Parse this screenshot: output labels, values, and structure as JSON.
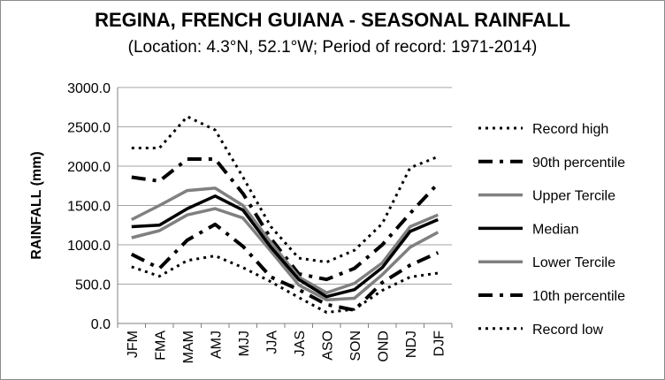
{
  "chart_data": {
    "type": "line",
    "title": "REGINA, FRENCH GUIANA - SEASONAL RAINFALL",
    "subtitle": "(Location: 4.3°N, 52.1°W; Period of record: 1971-2014)",
    "ylabel": "RAINFALL (mm)",
    "xlabel": "",
    "ylim": [
      0,
      3000
    ],
    "yticks": [
      "0.0",
      "500.0",
      "1000.0",
      "1500.0",
      "2000.0",
      "2500.0",
      "3000.0"
    ],
    "grid": "horizontal",
    "legend_position": "right",
    "categories": [
      "JFM",
      "FMA",
      "MAM",
      "AMJ",
      "MJJ",
      "JJA",
      "JAS",
      "ASO",
      "SON",
      "OND",
      "NDJ",
      "DJF"
    ],
    "series": [
      {
        "name": "Record high",
        "style": "dotted",
        "color": "#000000",
        "values": [
          2230,
          2230,
          2630,
          2460,
          1860,
          1230,
          830,
          780,
          930,
          1270,
          1980,
          2120
        ]
      },
      {
        "name": "90th percentile",
        "style": "dashdot",
        "color": "#000000",
        "values": [
          1860,
          1810,
          2090,
          2090,
          1650,
          1080,
          630,
          560,
          700,
          1000,
          1400,
          1780
        ]
      },
      {
        "name": "Upper Tercile",
        "style": "solid",
        "color": "#808080",
        "values": [
          1320,
          1500,
          1690,
          1720,
          1500,
          1030,
          590,
          390,
          510,
          770,
          1230,
          1380
        ]
      },
      {
        "name": "Median",
        "style": "solid",
        "color": "#000000",
        "values": [
          1230,
          1250,
          1460,
          1620,
          1440,
          970,
          560,
          340,
          430,
          710,
          1170,
          1320
        ]
      },
      {
        "name": "Lower Tercile",
        "style": "solid",
        "color": "#808080",
        "values": [
          1090,
          1180,
          1380,
          1460,
          1340,
          920,
          490,
          300,
          320,
          620,
          970,
          1160
        ]
      },
      {
        "name": "10th percentile",
        "style": "dashdot",
        "color": "#000000",
        "values": [
          880,
          700,
          1060,
          1260,
          980,
          590,
          430,
          240,
          170,
          520,
          740,
          900
        ]
      },
      {
        "name": "Record low",
        "style": "dotted",
        "color": "#000000",
        "values": [
          720,
          600,
          800,
          860,
          710,
          530,
          330,
          140,
          180,
          420,
          590,
          640
        ]
      }
    ]
  }
}
